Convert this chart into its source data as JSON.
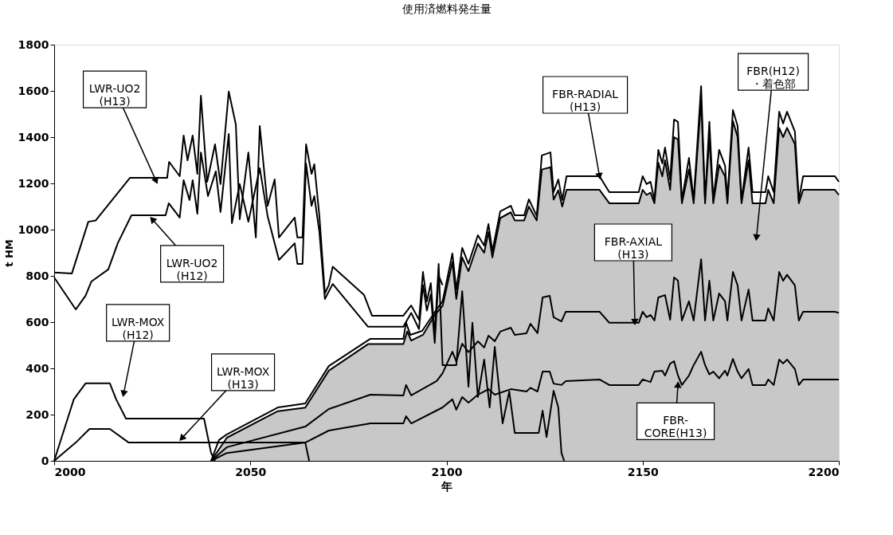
{
  "chart_data": {
    "type": "line",
    "title": "使用済燃料発生量",
    "xlabel": "年",
    "ylabel": "t HM",
    "xlim": [
      2000,
      2200
    ],
    "xticks": [
      2000,
      2050,
      2100,
      2150,
      2200
    ],
    "ylim": [
      0,
      1800
    ],
    "yticks": [
      0,
      200,
      400,
      600,
      800,
      1000,
      1200,
      1400,
      1600,
      1800
    ],
    "grid": false,
    "marker": "none",
    "line_style": "solid",
    "series": [
      {
        "type": "area",
        "color": "#c8c8c8",
        "x": [
          2040,
          2044,
          2057,
          2064,
          2070,
          2080,
          2089,
          2090,
          2091,
          2094,
          2097,
          2099,
          2101.5,
          2102.5,
          2104,
          2105.6,
          2108,
          2109.6,
          2110.7,
          2111.7,
          2113.7,
          2116.4,
          2117.4,
          2119.8,
          2121,
          2123,
          2124.3,
          2126.5,
          2127.3,
          2128.5,
          2129.5,
          2130.6,
          2139,
          2141.5,
          2149,
          2150,
          2151,
          2152,
          2153,
          2154,
          2155,
          2155.7,
          2157,
          2158,
          2159,
          2160,
          2161.8,
          2163,
          2164.9,
          2165.9,
          2167,
          2168,
          2169.5,
          2171,
          2171.6,
          2173,
          2174.2,
          2175.2,
          2177,
          2178,
          2181.3,
          2182,
          2183.4,
          2184.8,
          2185.8,
          2186.8,
          2188.8,
          2189.8,
          2190.9,
          2199,
          2200
        ],
        "values": [
          0,
          100,
          215,
          230,
          390,
          505,
          505,
          560,
          520,
          545,
          630,
          670,
          860,
          700,
          880,
          820,
          940,
          900,
          990,
          880,
          1050,
          1075,
          1040,
          1040,
          1100,
          1040,
          1260,
          1270,
          1130,
          1170,
          1100,
          1172,
          1172,
          1114,
          1114,
          1172,
          1150,
          1160,
          1114,
          1290,
          1230,
          1300,
          1172,
          1400,
          1390,
          1114,
          1260,
          1114,
          1560,
          1114,
          1400,
          1114,
          1280,
          1230,
          1114,
          1470,
          1400,
          1114,
          1300,
          1114,
          1114,
          1172,
          1114,
          1440,
          1400,
          1440,
          1370,
          1114,
          1172,
          1172,
          1150
        ]
      },
      {
        "color": "#000000",
        "x": [
          2000,
          2004.5,
          2008.7,
          2010.6,
          2019.3,
          2028.8,
          2029.3,
          2032,
          2033,
          2034,
          2035.3,
          2036.5,
          2037.4,
          2039,
          2041,
          2042.4,
          2044.5,
          2046.3,
          2047.3,
          2049.5,
          2051.4,
          2052.4,
          2054.4,
          2056.2,
          2057.3,
          2061.3,
          2062,
          2063.3,
          2064.2,
          2065.6,
          2066.3,
          2067.6,
          2069,
          2070,
          2071,
          2079,
          2081,
          2089,
          2091,
          2093,
          2094,
          2095,
          2096,
          2097,
          2098,
          2099,
          2102.5,
          2104,
          2105.6,
          2106.6,
          2108,
          2109.6,
          2111,
          2112.3,
          2114.3,
          2116,
          2117.4,
          2123.5,
          2124.5,
          2125.5,
          2127.3,
          2128.5,
          2129.3,
          2130
        ],
        "values": [
          815,
          810,
          1034,
          1040,
          1224,
          1224,
          1293,
          1231,
          1407,
          1300,
          1407,
          1241,
          1579,
          1207,
          1369,
          1197,
          1597,
          1455,
          1045,
          1334,
          966,
          1448,
          1103,
          1217,
          966,
          1052,
          966,
          966,
          1369,
          1241,
          1283,
          1059,
          724,
          760,
          840,
          717,
          628,
          628,
          672,
          610,
          817,
          690,
          769,
          541,
          852,
          414,
          414,
          734,
          321,
          597,
          276,
          438,
          231,
          493,
          162,
          300,
          121,
          121,
          217,
          103,
          303,
          231,
          34,
          0
        ]
      },
      {
        "color": "#000000",
        "x": [
          2000,
          2005.5,
          2008,
          2009.5,
          2013.8,
          2016.2,
          2019.7,
          2028.4,
          2029.2,
          2032,
          2033,
          2034.5,
          2035.3,
          2036.5,
          2037.4,
          2039.2,
          2041.2,
          2042.4,
          2044.5,
          2045.3,
          2047.3,
          2049.5,
          2052.4,
          2054.4,
          2057.3,
          2061.3,
          2062,
          2063.3,
          2064.2,
          2065.6,
          2066.3,
          2067.6,
          2069,
          2071,
          2080,
          2089,
          2091,
          2093,
          2094,
          2095,
          2096,
          2097,
          2098,
          2099
        ],
        "values": [
          793,
          655,
          714,
          776,
          828,
          941,
          1062,
          1062,
          1114,
          1052,
          1214,
          1128,
          1214,
          1069,
          1334,
          1145,
          1252,
          1076,
          1414,
          1028,
          1197,
          1034,
          1266,
          1059,
          869,
          941,
          852,
          852,
          1286,
          1103,
          1145,
          990,
          700,
          765,
          580,
          580,
          640,
          570,
          760,
          650,
          720,
          510,
          800,
          760
        ]
      },
      {
        "color": "#000000",
        "x": [
          2000,
          2005,
          2008,
          2014.2,
          2015.8,
          2018.3,
          2038.2,
          2040,
          2041
        ],
        "values": [
          0,
          266,
          335,
          335,
          266,
          183,
          183,
          34,
          0
        ]
      },
      {
        "color": "#000000",
        "x": [
          2000,
          2005.5,
          2009,
          2014.2,
          2019,
          2064,
          2065
        ],
        "values": [
          0,
          79,
          138,
          138,
          79,
          79,
          0
        ]
      },
      {
        "color": "#000000",
        "x": [
          2040,
          2042,
          2044,
          2057,
          2064,
          2070,
          2080.6,
          2089,
          2089.7,
          2090.8,
          2093.8,
          2097.5,
          2099,
          2101.5,
          2102.5,
          2104,
          2105.6,
          2108,
          2109.6,
          2110.7,
          2111.7,
          2113.7,
          2116.4,
          2117.4,
          2119.8,
          2121,
          2123,
          2124.3,
          2126.5,
          2127.3,
          2128.5,
          2129.5,
          2130.6,
          2139,
          2141.5,
          2149,
          2150,
          2151,
          2152,
          2153,
          2154,
          2155,
          2155.7,
          2157,
          2158,
          2159,
          2160,
          2161.8,
          2163,
          2164.9,
          2165.9,
          2167,
          2168,
          2169.5,
          2171,
          2171.6,
          2173,
          2174.2,
          2175.2,
          2177,
          2178,
          2181.3,
          2182,
          2183.4,
          2184.8,
          2185.8,
          2186.8,
          2188.8,
          2189.8,
          2190.9,
          2199,
          2200
        ],
        "values": [
          0,
          90,
          114,
          231,
          248,
          410,
          528,
          528,
          597,
          545,
          562,
          655,
          690,
          897,
          740,
          921,
          852,
          976,
          931,
          1024,
          907,
          1079,
          1103,
          1062,
          1062,
          1131,
          1059,
          1321,
          1334,
          1162,
          1217,
          1128,
          1231,
          1231,
          1162,
          1162,
          1231,
          1197,
          1207,
          1128,
          1345,
          1286,
          1355,
          1217,
          1476,
          1466,
          1128,
          1310,
          1128,
          1621,
          1128,
          1466,
          1128,
          1345,
          1276,
          1128,
          1517,
          1448,
          1128,
          1355,
          1162,
          1162,
          1231,
          1162,
          1510,
          1459,
          1510,
          1424,
          1128,
          1231,
          1231,
          1207
        ]
      },
      {
        "color": "#000000",
        "x": [
          2040,
          2044,
          2064,
          2070,
          2080.6,
          2089,
          2089.7,
          2091,
          2097.5,
          2099,
          2101.5,
          2102.5,
          2104,
          2105.6,
          2108,
          2109.6,
          2110.7,
          2112.3,
          2113.7,
          2116.4,
          2117.4,
          2120.4,
          2121.4,
          2123.2,
          2124.5,
          2126.3,
          2127.3,
          2129.3,
          2130.4,
          2139,
          2141.5,
          2149,
          2150,
          2151,
          2152,
          2153,
          2154,
          2155.7,
          2157,
          2158,
          2159,
          2160,
          2161.8,
          2163,
          2164.9,
          2165.9,
          2167,
          2168,
          2169.5,
          2171,
          2171.6,
          2173,
          2174.2,
          2175.2,
          2177,
          2178,
          2181.3,
          2182,
          2183.4,
          2184.8,
          2185.8,
          2186.8,
          2188.8,
          2189.8,
          2190.9,
          2199,
          2200
        ],
        "values": [
          0,
          59,
          148,
          224,
          286,
          283,
          328,
          283,
          345,
          379,
          472,
          430,
          507,
          470,
          517,
          490,
          541,
          517,
          559,
          576,
          545,
          552,
          593,
          552,
          707,
          714,
          621,
          603,
          645,
          645,
          597,
          597,
          645,
          621,
          631,
          607,
          707,
          717,
          610,
          793,
          779,
          607,
          690,
          607,
          872,
          607,
          779,
          607,
          724,
          690,
          607,
          817,
          759,
          607,
          741,
          607,
          607,
          659,
          607,
          817,
          779,
          805,
          759,
          607,
          645,
          645,
          640
        ]
      },
      {
        "color": "#000000",
        "x": [
          2040,
          2044,
          2064,
          2070,
          2080.6,
          2089,
          2089.7,
          2091,
          2099,
          2101.5,
          2102.5,
          2104,
          2105.6,
          2108,
          2110.7,
          2112.3,
          2116.4,
          2120.4,
          2121.4,
          2123.2,
          2124.5,
          2126.3,
          2127.3,
          2129.3,
          2130.4,
          2139,
          2141.5,
          2149,
          2150,
          2152,
          2153,
          2155,
          2155.7,
          2157,
          2158,
          2159,
          2160,
          2161.8,
          2163,
          2164.9,
          2165.9,
          2167,
          2168,
          2169.5,
          2171,
          2171.6,
          2173,
          2174.2,
          2175.2,
          2177,
          2178,
          2181.3,
          2182,
          2183.4,
          2184.8,
          2185.8,
          2186.8,
          2188.8,
          2189.8,
          2190.9,
          2199,
          2200
        ],
        "values": [
          0,
          34,
          79,
          131,
          162,
          162,
          193,
          162,
          231,
          266,
          221,
          276,
          252,
          286,
          310,
          286,
          310,
          300,
          316,
          300,
          386,
          386,
          334,
          328,
          345,
          352,
          328,
          328,
          352,
          341,
          386,
          390,
          369,
          420,
          431,
          369,
          328,
          369,
          414,
          472,
          414,
          374,
          386,
          357,
          390,
          369,
          441,
          386,
          357,
          397,
          328,
          328,
          352,
          328,
          438,
          421,
          438,
          397,
          328,
          352,
          352,
          352
        ]
      }
    ],
    "annotations": [
      {
        "text": "LWR-UO2\n(H13)",
        "x": 2026,
        "y": 1210
      },
      {
        "text": "LWR-UO2\n(H12)",
        "x": 2025,
        "y": 1045
      },
      {
        "text": "LWR-MOX\n(H12)",
        "x": 2017.7,
        "y": 290
      },
      {
        "text": "LWR-MOX\n(H13)",
        "x": 2032.5,
        "y": 97
      },
      {
        "text": "FBR-RADIAL\n(H13)",
        "x": 2139,
        "y": 1231
      },
      {
        "text": "FBR-AXIAL\n(H13)",
        "x": 2148,
        "y": 600
      },
      {
        "text": "FBR-\nCORE(H13)",
        "x": 2159,
        "y": 330
      },
      {
        "text": "FBR(H12)\n・着色部",
        "x": 2179,
        "y": 965
      }
    ]
  }
}
